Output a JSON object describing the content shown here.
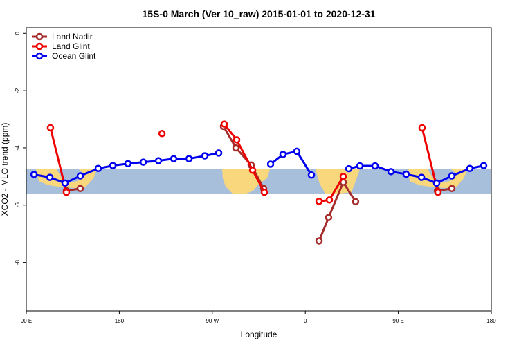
{
  "chart_data": {
    "type": "line",
    "title": "15S-0 March (Ver 10_raw)   2015-01-01 to 2020-12-31",
    "x_label": "Longitude",
    "y_label": "XCO2 - MLO trend (ppm)",
    "xlim": [
      90,
      540
    ],
    "ylim": [
      -9.7,
      0.2
    ],
    "xticks": [
      {
        "value": 90,
        "label": "90 E"
      },
      180,
      {
        "value": 270,
        "label": "90 W"
      },
      {
        "value": 360,
        "label": "0"
      },
      {
        "value": 450,
        "label": "90 E"
      },
      {
        "value": 540,
        "label": "180"
      }
    ],
    "yticks": [
      0,
      -2,
      -4,
      -6,
      -8
    ],
    "legend": "top-left",
    "series": [
      {
        "name": "Land Nadir",
        "color": "#a52a2a",
        "x": [
          128.8,
          142.2,
          null,
          280.8,
          292.9,
          307.6,
          319.7,
          null,
          373.3,
          382.6,
          396.7,
          408.7,
          null,
          487.8,
          501.8
        ],
        "values": [
          -5.5,
          -5.42,
          null,
          -3.25,
          -4.0,
          -4.6,
          -5.42,
          null,
          -7.25,
          -6.43,
          -5.2,
          -5.88,
          null,
          -5.5,
          -5.42
        ]
      },
      {
        "name": "Land Glint",
        "color": "#ee0000",
        "x": [
          113.4,
          128.8,
          null,
          221.3,
          null,
          281.5,
          293.6,
          309.0,
          320.4,
          null,
          373.3,
          383.3,
          396.7,
          null,
          473.0,
          488.4
        ],
        "values": [
          -3.3,
          -5.55,
          null,
          -3.5,
          null,
          -3.17,
          -3.72,
          -4.78,
          -5.55,
          null,
          -5.87,
          -5.82,
          -5.0,
          null,
          -3.3,
          -5.55
        ]
      },
      {
        "name": "Ocean Glint",
        "color": "#0000ee",
        "x": [
          97.4,
          112.8,
          127.5,
          142.2,
          159.6,
          173.7,
          188.4,
          203.2,
          217.9,
          232.6,
          247.4,
          262.8,
          276.2,
          null,
          326.4,
          338.4,
          351.8,
          365.9,
          null,
          402.1,
          412.8,
          427.5,
          442.9,
          457.6,
          472.4,
          487.1,
          501.8,
          519.2,
          532.6
        ],
        "values": [
          -4.93,
          -5.03,
          -5.23,
          -4.98,
          -4.72,
          -4.62,
          -4.55,
          -4.5,
          -4.45,
          -4.38,
          -4.38,
          -4.28,
          -4.18,
          null,
          -4.57,
          -4.23,
          -4.12,
          -4.95,
          null,
          -4.73,
          -4.63,
          -4.63,
          -4.83,
          -4.92,
          -5.03,
          -5.23,
          -4.98,
          -4.72,
          -4.62
        ]
      }
    ]
  }
}
